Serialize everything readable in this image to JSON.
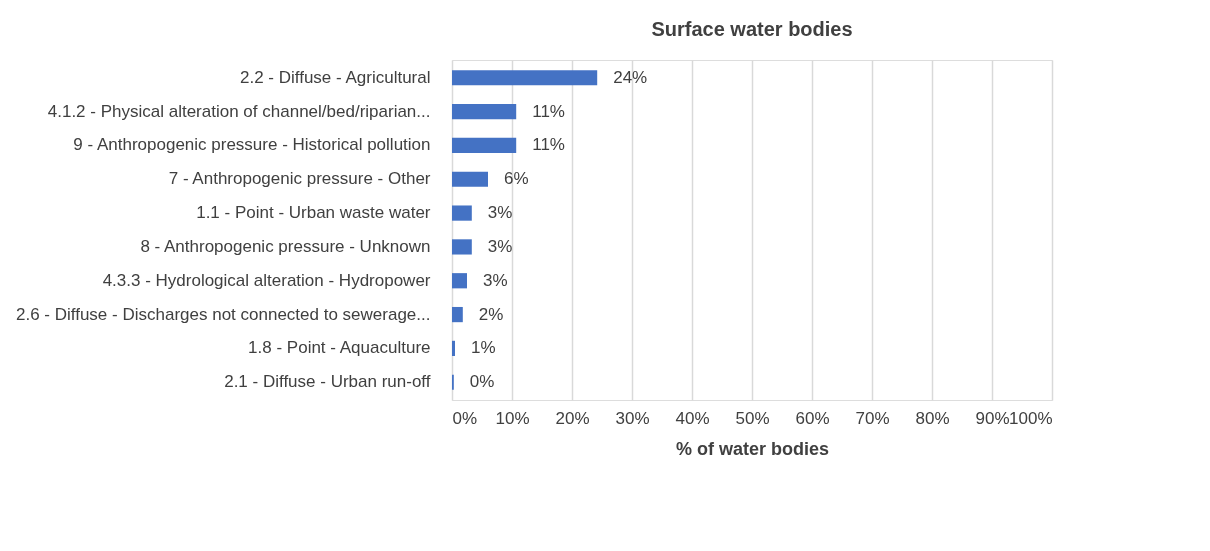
{
  "chart_data": {
    "type": "bar",
    "orientation": "horizontal",
    "title": "Surface water bodies",
    "xlabel": "% of water bodies",
    "categories": [
      "2.2 - Diffuse - Agricultural",
      "4.1.2 - Physical alteration of channel/bed/riparian...",
      "9 - Anthropogenic pressure - Historical pollution",
      "7 - Anthropogenic pressure - Other",
      "1.1 - Point - Urban waste water",
      "8 - Anthropogenic pressure - Unknown",
      "4.3.3 - Hydrological alteration - Hydropower",
      "2.6 - Diffuse - Discharges not connected to sewerage...",
      "1.8 - Point - Aquaculture",
      "2.1 - Diffuse - Urban run-off"
    ],
    "values": [
      24.2,
      10.7,
      10.7,
      6.0,
      3.3,
      3.3,
      2.5,
      1.8,
      0.5,
      0.3
    ],
    "value_labels": [
      "24%",
      "11%",
      "11%",
      "6%",
      "3%",
      "3%",
      "3%",
      "2%",
      "1%",
      "0%"
    ],
    "color": "#4472c4",
    "xlim": [
      0,
      100
    ],
    "xticks": [
      {
        "value": 0,
        "label": "0%"
      },
      {
        "value": 10,
        "label": "10%"
      },
      {
        "value": 20,
        "label": "20%"
      },
      {
        "value": 30,
        "label": "30%"
      },
      {
        "value": 40,
        "label": "40%"
      },
      {
        "value": 50,
        "label": "50%"
      },
      {
        "value": 60,
        "label": "60%"
      },
      {
        "value": 70,
        "label": "70%"
      },
      {
        "value": 80,
        "label": "80%"
      },
      {
        "value": 90,
        "label": "90%"
      },
      {
        "value": 100,
        "label": "100%"
      }
    ],
    "grid": "x"
  }
}
